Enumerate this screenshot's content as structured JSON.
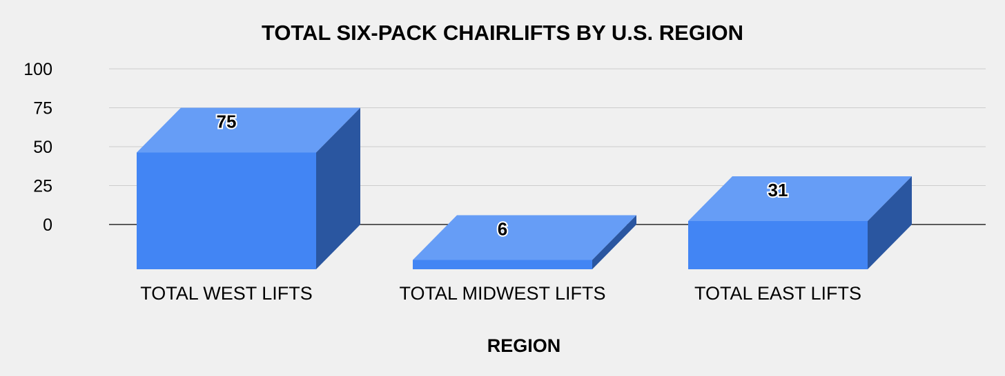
{
  "chart_data": {
    "type": "bar",
    "style": "3d",
    "title": "TOTAL SIX-PACK CHAIRLIFTS BY U.S. REGION",
    "xlabel": "REGION",
    "ylabel": "",
    "categories": [
      "TOTAL WEST LIFTS",
      "TOTAL MIDWEST LIFTS",
      "TOTAL EAST LIFTS"
    ],
    "values": [
      75,
      6,
      31
    ],
    "data_labels": [
      "75",
      "6",
      "31"
    ],
    "ylim": [
      0,
      100
    ],
    "yticks": [
      "0",
      "25",
      "50",
      "75",
      "100"
    ],
    "grid": true,
    "legend": "none",
    "colors": {
      "background": "#f0f0f0",
      "bar_front": "#4285f4",
      "bar_top": "#669df6",
      "bar_side": "#2a56a0",
      "grid": "#cccccc"
    }
  }
}
